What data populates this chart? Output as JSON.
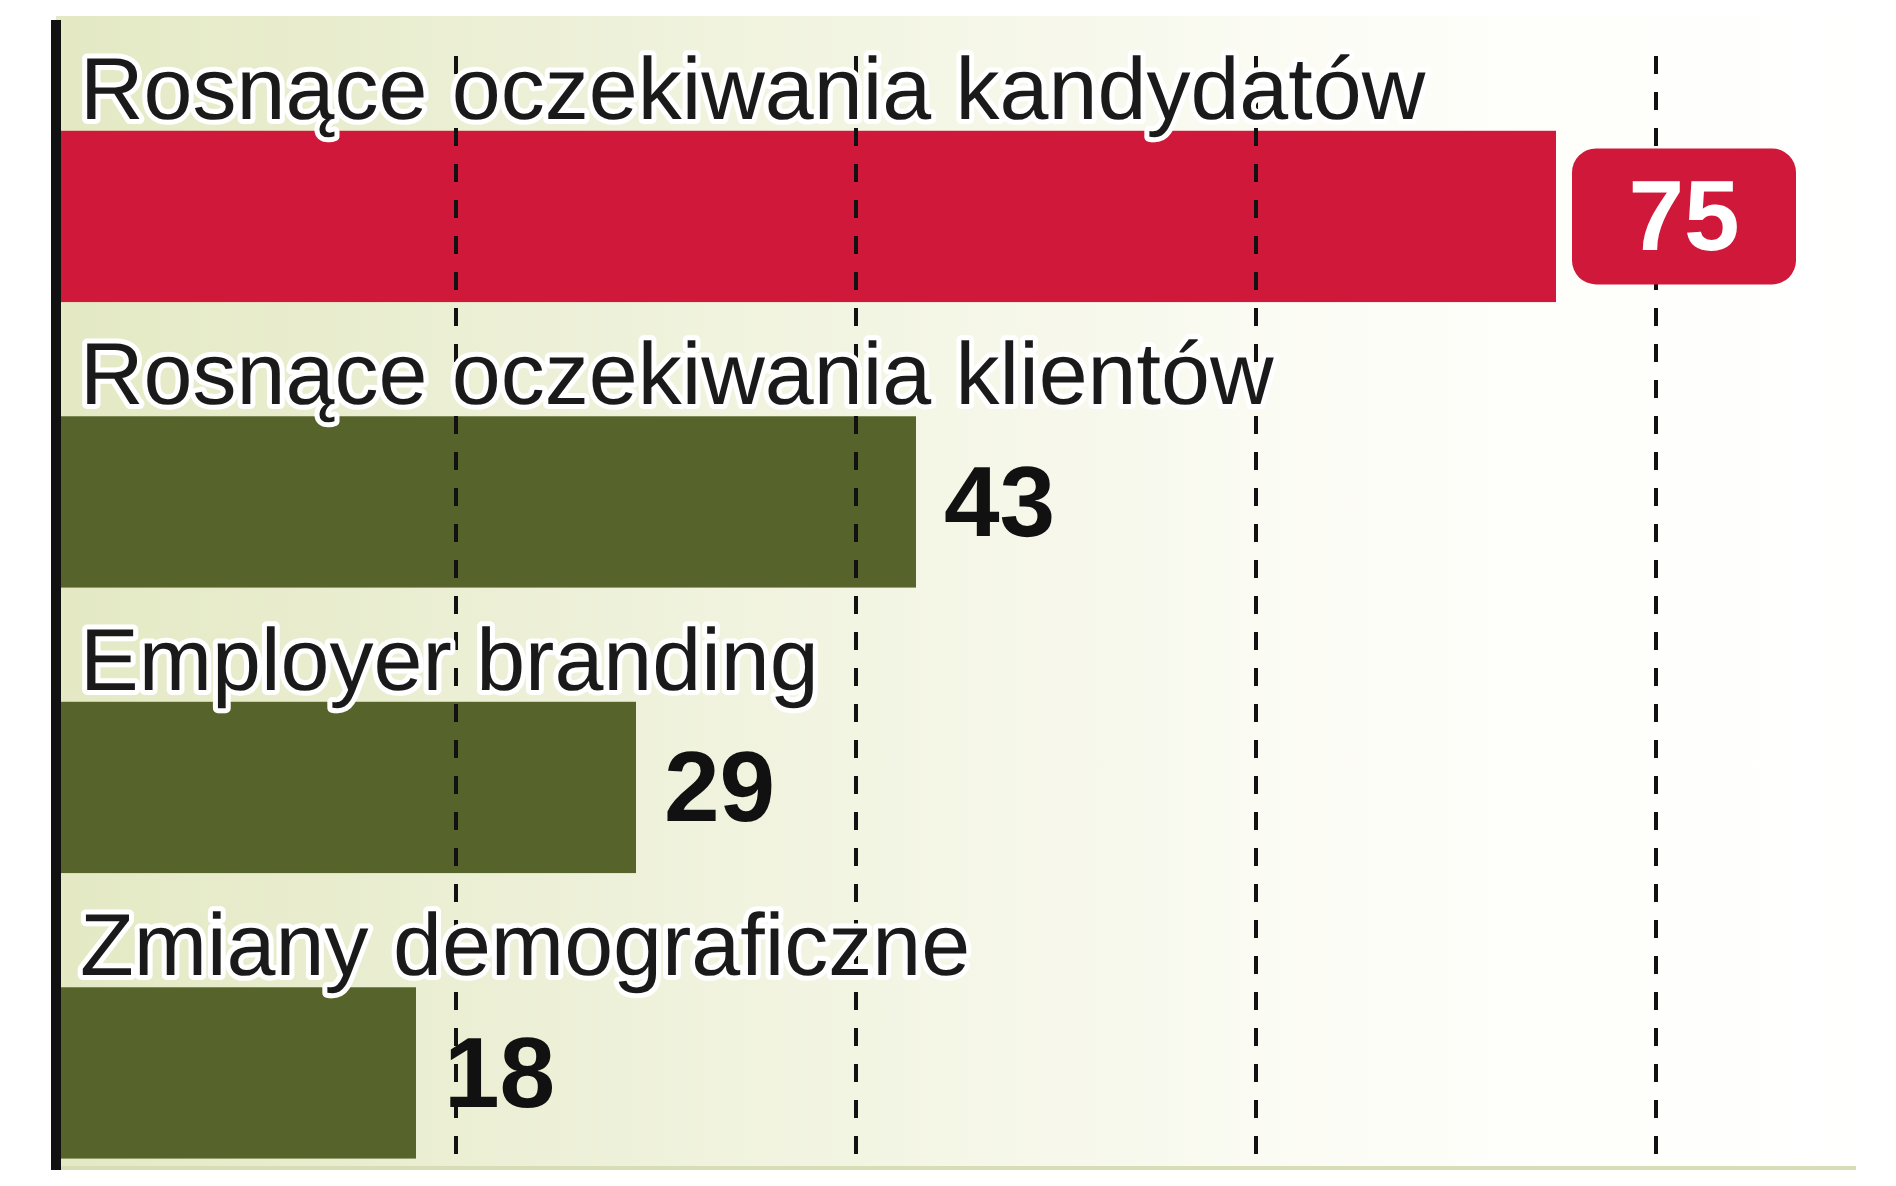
{
  "chart_data": {
    "type": "bar",
    "orientation": "horizontal",
    "categories": [
      "Rosnące oczekiwania kandydatów",
      "Rosnące oczekiwania klientów",
      "Employer branding",
      "Zmiany demograficzne"
    ],
    "values": [
      75,
      43,
      29,
      18
    ],
    "colors": [
      "#d0183a",
      "#56632a",
      "#56632a",
      "#56632a"
    ],
    "xlim": [
      0,
      90
    ],
    "xticks": [
      {
        "value": 20,
        "label": null
      },
      {
        "value": 40,
        "label": null
      },
      {
        "value": 60,
        "label": null
      },
      {
        "value": 80,
        "label": null
      }
    ],
    "grid": "x",
    "tick_labels": false,
    "data_labels": true
  }
}
